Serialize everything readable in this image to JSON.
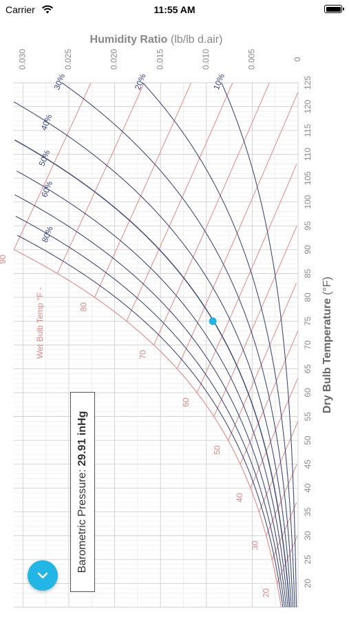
{
  "status_bar": {
    "carrier": "Carrier",
    "time": "11:55 AM"
  },
  "barometric": {
    "label": "Barometric Pressure:",
    "value": "29.91 inHg"
  },
  "fab": {
    "icon": "chevron-down-icon"
  },
  "chart_data": {
    "type": "psychrometric",
    "x_axis": {
      "title": "Dry Bulb Temperature",
      "unit": "(°F)",
      "range": [
        15,
        125
      ],
      "ticks": [
        20,
        25,
        30,
        35,
        40,
        45,
        50,
        55,
        60,
        65,
        70,
        75,
        80,
        85,
        90,
        95,
        100,
        105,
        110,
        115,
        120,
        125
      ]
    },
    "y_axis": {
      "title": "Humidity Ratio",
      "unit": "(lb/lb d.air)",
      "range": [
        0,
        0.031
      ],
      "ticks": [
        "0",
        "0.005",
        "0.010",
        "0.015",
        "0.020",
        "0.025",
        "0.030"
      ]
    },
    "rh_curves": [
      {
        "rh": 10,
        "label": "10%"
      },
      {
        "rh": 20,
        "label": "20%"
      },
      {
        "rh": 30,
        "label": "30%"
      },
      {
        "rh": 40,
        "label": "40%"
      },
      {
        "rh": 50,
        "label": "50%"
      },
      {
        "rh": 60,
        "label": "60%"
      },
      {
        "rh": 70,
        "label": ""
      },
      {
        "rh": 80,
        "label": "80%"
      },
      {
        "rh": 90,
        "label": ""
      },
      {
        "rh": 100,
        "label": ""
      }
    ],
    "wet_bulb_lines": [
      20,
      25,
      30,
      35,
      40,
      45,
      50,
      55,
      60,
      65,
      70,
      75,
      80,
      85,
      90
    ],
    "wet_bulb_labels": [
      "20",
      "30",
      "40",
      "50",
      "60",
      "70",
      "80",
      "90"
    ],
    "wet_bulb_title": "Wet Bulb Temp °F -",
    "point": {
      "dry_bulb": 75,
      "humidity_ratio": 0.0093
    },
    "colors": {
      "rh": "#3f4a7a",
      "wet_bulb": "#e08a86",
      "grid": "#d6d6d6",
      "point": "#1fb4e3",
      "axis_text": "#8a8a8a"
    }
  }
}
